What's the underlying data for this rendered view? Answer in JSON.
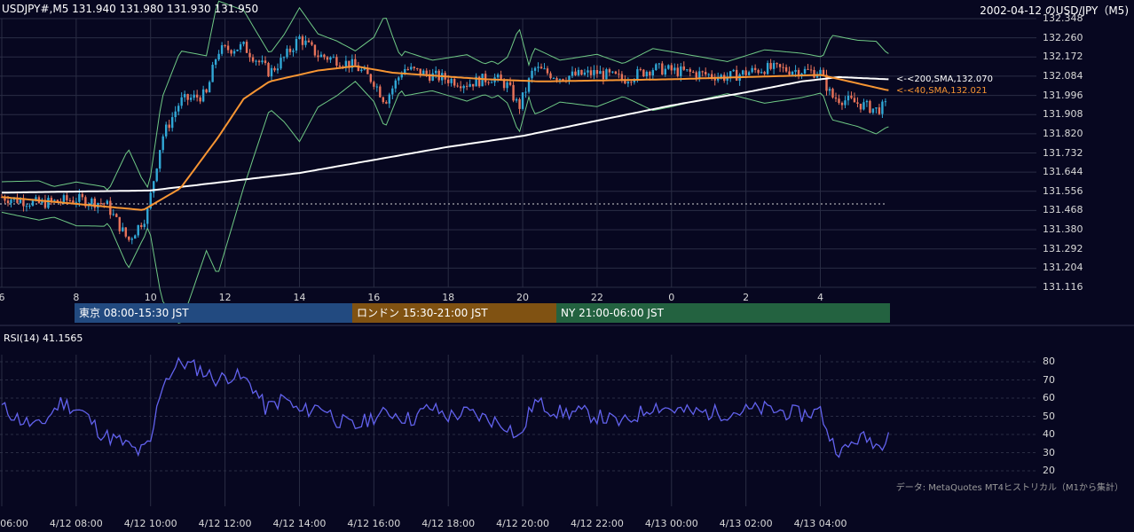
{
  "header": {
    "symbol_line": "USDJPY#,M5 131.940 131.980 131.930 131.950",
    "title": "2002-04-12 のUSD/JPY（M5)"
  },
  "colors": {
    "background": "#070720",
    "bull": "#31a8d6",
    "bear": "#e8735a",
    "ma40": "#f79533",
    "ma200": "#ffffff",
    "bands": "#6fc985",
    "rsi": "#6262ee",
    "grid": "#2a2d44"
  },
  "price_axis": {
    "ticks": [
      "132.348",
      "132.260",
      "132.172",
      "132.084",
      "131.996",
      "131.908",
      "131.820",
      "131.732",
      "131.644",
      "131.556",
      "131.468",
      "131.380",
      "131.292",
      "131.204",
      "131.116"
    ]
  },
  "time_axis": {
    "ticks": [
      "6",
      "8",
      "10",
      "12",
      "14",
      "16",
      "18",
      "20",
      "22",
      "0",
      "2",
      "4"
    ]
  },
  "ma_labels": {
    "ma200": "<-<200,SMA,132.070",
    "ma40": "<-<40,SMA,132.021"
  },
  "sessions": {
    "tokyo": "東京 08:00-15:30 JST",
    "london": "ロンドン 15:30-21:00 JST",
    "ny": "NY 21:00-06:00 JST"
  },
  "rsi": {
    "label": "RSI(14) 41.1565",
    "ticks": [
      "80",
      "70",
      "60",
      "50",
      "40",
      "30",
      "20"
    ]
  },
  "bottom_axis": {
    "ticks": [
      "06:00",
      "4/12 08:00",
      "4/12 10:00",
      "4/12 12:00",
      "4/12 14:00",
      "4/12 16:00",
      "4/12 18:00",
      "4/12 20:00",
      "4/12 22:00",
      "4/13 00:00",
      "4/13 02:00",
      "4/13 04:00"
    ]
  },
  "credit": "データ: MetaQuotes MT4ヒストリカル（M1から集計）",
  "chart_data": [
    {
      "type": "candlestick",
      "title": "2002-04-12 のUSD/JPY（M5)",
      "ylim": [
        131.116,
        132.348
      ],
      "x_hours": [
        6,
        29.8
      ],
      "reference_line": 131.498,
      "series": [
        {
          "name": "close",
          "key_points": [
            [
              6.0,
              131.53
            ],
            [
              7.0,
              131.5
            ],
            [
              8.0,
              131.52
            ],
            [
              8.8,
              131.5
            ],
            [
              9.4,
              131.33
            ],
            [
              9.9,
              131.45
            ],
            [
              10.3,
              131.8
            ],
            [
              10.8,
              131.97
            ],
            [
              11.5,
              132.0
            ],
            [
              11.8,
              132.2
            ],
            [
              12.5,
              132.22
            ],
            [
              13.2,
              132.1
            ],
            [
              13.6,
              132.17
            ],
            [
              14.0,
              132.26
            ],
            [
              14.5,
              132.18
            ],
            [
              15.0,
              132.16
            ],
            [
              15.5,
              132.13
            ],
            [
              16.0,
              132.06
            ],
            [
              16.3,
              131.97
            ],
            [
              16.8,
              132.12
            ],
            [
              17.5,
              132.09
            ],
            [
              18.5,
              132.05
            ],
            [
              19.2,
              132.08
            ],
            [
              19.6,
              132.04
            ],
            [
              19.9,
              131.94
            ],
            [
              20.3,
              132.12
            ],
            [
              21.0,
              132.08
            ],
            [
              22.0,
              132.1
            ],
            [
              22.7,
              132.07
            ],
            [
              23.5,
              132.12
            ],
            [
              24.5,
              132.1
            ],
            [
              25.5,
              132.08
            ],
            [
              26.5,
              132.12
            ],
            [
              27.5,
              132.11
            ],
            [
              28.0,
              132.1
            ],
            [
              28.3,
              131.99
            ],
            [
              29.0,
              131.96
            ],
            [
              29.5,
              131.93
            ],
            [
              29.8,
              131.95
            ]
          ]
        },
        {
          "name": "40,SMA",
          "key_points": [
            [
              6.0,
              131.53
            ],
            [
              9.8,
              131.47
            ],
            [
              10.8,
              131.57
            ],
            [
              11.8,
              131.8
            ],
            [
              12.5,
              131.98
            ],
            [
              13.2,
              132.06
            ],
            [
              14.5,
              132.11
            ],
            [
              15.5,
              132.13
            ],
            [
              16.5,
              132.1
            ],
            [
              19.0,
              132.07
            ],
            [
              20.5,
              132.06
            ],
            [
              24.0,
              132.07
            ],
            [
              28.0,
              132.09
            ],
            [
              29.8,
              132.02
            ]
          ]
        },
        {
          "name": "200,SMA",
          "key_points": [
            [
              6.0,
              131.55
            ],
            [
              10.0,
              131.56
            ],
            [
              14.0,
              131.64
            ],
            [
              18.0,
              131.76
            ],
            [
              20.0,
              131.81
            ],
            [
              22.0,
              131.88
            ],
            [
              24.0,
              131.95
            ],
            [
              26.0,
              132.01
            ],
            [
              27.5,
              132.06
            ],
            [
              28.5,
              132.08
            ],
            [
              29.8,
              132.07
            ]
          ]
        }
      ]
    },
    {
      "type": "line",
      "title": "RSI(14) 41.1565",
      "ylim": [
        20,
        80
      ],
      "x_hours": [
        6,
        29.8
      ],
      "series": [
        {
          "name": "RSI(14)",
          "key_points": [
            [
              6.0,
              55
            ],
            [
              6.5,
              48
            ],
            [
              7.0,
              44
            ],
            [
              7.6,
              58
            ],
            [
              8.2,
              52
            ],
            [
              8.7,
              40
            ],
            [
              9.2,
              36
            ],
            [
              9.7,
              30
            ],
            [
              10.0,
              35
            ],
            [
              10.3,
              68
            ],
            [
              10.8,
              80
            ],
            [
              11.3,
              76
            ],
            [
              11.8,
              70
            ],
            [
              12.2,
              73
            ],
            [
              12.7,
              68
            ],
            [
              13.1,
              54
            ],
            [
              13.6,
              60
            ],
            [
              14.0,
              52
            ],
            [
              14.6,
              56
            ],
            [
              15.0,
              48
            ],
            [
              15.5,
              44
            ],
            [
              16.0,
              50
            ],
            [
              16.5,
              52
            ],
            [
              17.0,
              48
            ],
            [
              17.5,
              55
            ],
            [
              18.0,
              50
            ],
            [
              18.5,
              52
            ],
            [
              19.0,
              49
            ],
            [
              19.6,
              45
            ],
            [
              19.9,
              37
            ],
            [
              20.3,
              58
            ],
            [
              21.0,
              52
            ],
            [
              21.6,
              52
            ],
            [
              22.0,
              50
            ],
            [
              22.7,
              46
            ],
            [
              23.5,
              56
            ],
            [
              24.5,
              52
            ],
            [
              25.5,
              52
            ],
            [
              26.5,
              54
            ],
            [
              27.5,
              51
            ],
            [
              28.0,
              53
            ],
            [
              28.3,
              36
            ],
            [
              28.6,
              30
            ],
            [
              29.0,
              38
            ],
            [
              29.4,
              37
            ],
            [
              29.6,
              33
            ],
            [
              29.8,
              41.16
            ]
          ]
        }
      ]
    }
  ]
}
